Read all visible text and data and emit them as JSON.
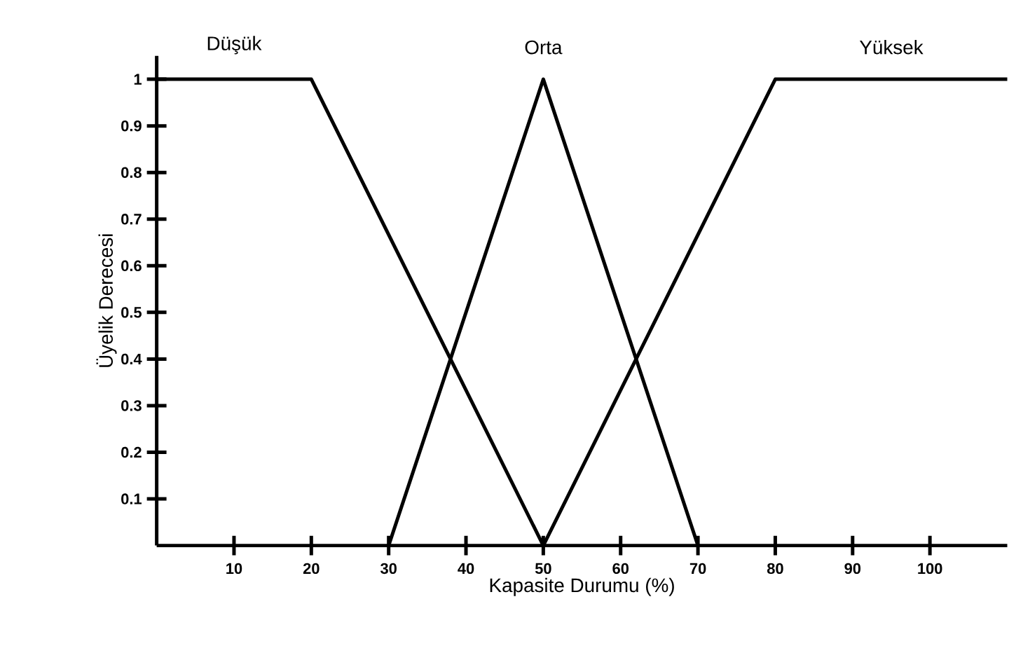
{
  "chart_data": {
    "type": "line",
    "xlabel": "Kapasite Durumu (%)",
    "ylabel": "Üyelik Derecesi",
    "series": [
      {
        "name": "Düşük",
        "color": "#000000",
        "x": [
          0,
          20,
          50
        ],
        "values": [
          1,
          1,
          0
        ]
      },
      {
        "name": "Orta",
        "color": "#000000",
        "x": [
          30,
          50,
          70
        ],
        "values": [
          0,
          1,
          0
        ]
      },
      {
        "name": "Yüksek",
        "color": "#000000",
        "x": [
          50,
          80,
          110
        ],
        "values": [
          0,
          1,
          1
        ]
      }
    ],
    "xlim": [
      0,
      110
    ],
    "ylim": [
      0,
      1.05
    ],
    "xticks": [
      10,
      20,
      30,
      40,
      50,
      60,
      70,
      80,
      90,
      100
    ],
    "yticks": [
      0.1,
      0.2,
      0.3,
      0.4,
      0.5,
      0.6,
      0.7,
      0.8,
      0.9,
      1
    ],
    "grid": false,
    "legend": false,
    "marker": "none",
    "line_style": "solid"
  }
}
